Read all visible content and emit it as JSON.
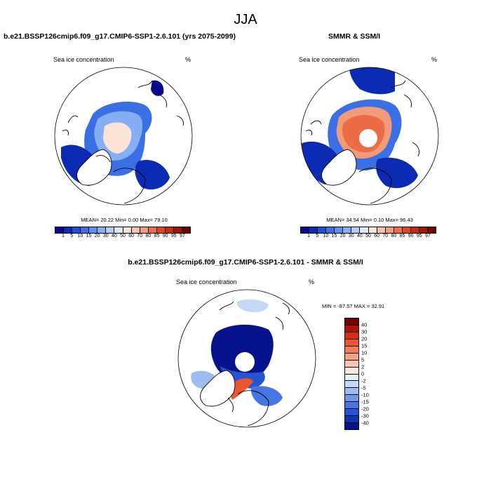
{
  "title": "JJA",
  "panels": [
    {
      "id": "model",
      "title": "b.e21.BSSP126cmip6.f09_g17.CMIP6-SSP1-2.6.101 (yrs 2075-2099)",
      "left_label": "Sea ice concentration",
      "right_label": "%",
      "stats": "MEAN=  20.22  Min=   0.00  Max=  79.10"
    },
    {
      "id": "obs",
      "title": "SMMR & SSM/I",
      "left_label": "Sea ice concentration",
      "right_label": "%",
      "stats": "MEAN=  34.54  Min=   0.10  Max=  96.43"
    },
    {
      "id": "diff",
      "title": "b.e21.BSSP126cmip6.f09_g17.CMIP6-SSP1-2.6.101 - SMMR & SSM/I",
      "left_label": "Sea ice concentration",
      "right_label": "%",
      "stats": "MIN = -87.57 MAX =  32.91"
    }
  ],
  "colorbar_seq": {
    "labels": [
      "1",
      "5",
      "10",
      "15",
      "20",
      "30",
      "40",
      "50",
      "60",
      "70",
      "80",
      "85",
      "90",
      "95",
      "97"
    ],
    "colors": [
      "#08088c",
      "#0c2bb5",
      "#1c4fd8",
      "#3a6fe6",
      "#5a8ef0",
      "#86aef5",
      "#b2cbf8",
      "#dde8fb",
      "#fbe3d5",
      "#f8c2a8",
      "#f39a78",
      "#ec6d45",
      "#e0461d",
      "#c82a10",
      "#9c1706",
      "#6e0000"
    ]
  },
  "colorbar_div": {
    "labels": [
      "40",
      "30",
      "20",
      "15",
      "10",
      "5",
      "2",
      "0",
      "-2",
      "-5",
      "-10",
      "-15",
      "-20",
      "-30",
      "-40"
    ],
    "colors": [
      "#7a0000",
      "#b01208",
      "#d8300e",
      "#ec5530",
      "#f27c55",
      "#f5a083",
      "#f8c5b0",
      "#fbe8de",
      "#e8f0fb",
      "#c5d8f7",
      "#9cbcf2",
      "#6e98ec",
      "#4676e2",
      "#2555d2",
      "#0c35b2",
      "#06138c"
    ]
  },
  "icons": {
    "map_projection": "north-polar-stereographic-map"
  },
  "colors": {
    "land_outline": "#000000",
    "missing_pole": "#ffffff"
  }
}
